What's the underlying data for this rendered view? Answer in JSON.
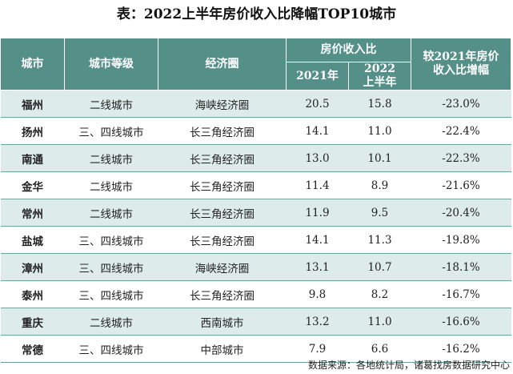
{
  "title": "表：2022上半年房价收入比降幅TOP10城市",
  "headers": {
    "city": "城市",
    "tier": "城市等级",
    "zone": "经济圈",
    "ratio_group": "房价收入比",
    "y2021": "2021年",
    "y2022": "2022\n上半年",
    "change": "较2021年房价\n收入比增幅"
  },
  "rows": [
    {
      "city": "福州",
      "tier": "二线城市",
      "zone": "海峡经济圈",
      "y2021": "20.5",
      "y2022": "15.8",
      "change": "-23.0%"
    },
    {
      "city": "扬州",
      "tier": "三、四线城市",
      "zone": "长三角经济圈",
      "y2021": "14.1",
      "y2022": "11.0",
      "change": "-22.4%"
    },
    {
      "city": "南通",
      "tier": "二线城市",
      "zone": "长三角经济圈",
      "y2021": "13.0",
      "y2022": "10.1",
      "change": "-22.3%"
    },
    {
      "city": "金华",
      "tier": "二线城市",
      "zone": "长三角经济圈",
      "y2021": "11.4",
      "y2022": "8.9",
      "change": "-21.6%"
    },
    {
      "city": "常州",
      "tier": "二线城市",
      "zone": "长三角经济圈",
      "y2021": "11.9",
      "y2022": "9.5",
      "change": "-20.4%"
    },
    {
      "city": "盐城",
      "tier": "三、四线城市",
      "zone": "长三角经济圈",
      "y2021": "14.1",
      "y2022": "11.3",
      "change": "-19.8%"
    },
    {
      "city": "漳州",
      "tier": "三、四线城市",
      "zone": "海峡经济圈",
      "y2021": "13.1",
      "y2022": "10.7",
      "change": "-18.1%"
    },
    {
      "city": "泰州",
      "tier": "三、四线城市",
      "zone": "长三角经济圈",
      "y2021": "9.8",
      "y2022": "8.2",
      "change": "-16.7%"
    },
    {
      "city": "重庆",
      "tier": "二线城市",
      "zone": "西南城市",
      "y2021": "13.2",
      "y2022": "11.0",
      "change": "-16.6%"
    },
    {
      "city": "常德",
      "tier": "三、四线城市",
      "zone": "中部城市",
      "y2021": "7.9",
      "y2022": "6.6",
      "change": "-16.2%"
    }
  ],
  "source": "数据来源：各地统计局，诸葛找房数据研究中心"
}
